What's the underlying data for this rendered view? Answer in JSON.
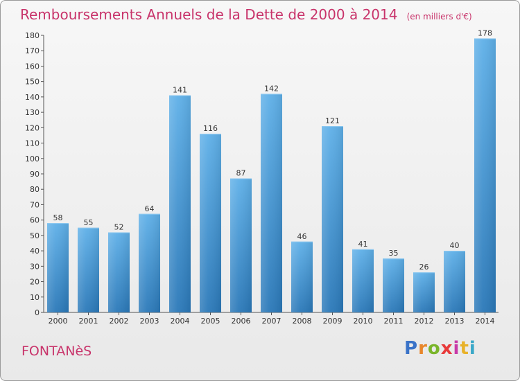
{
  "title": "Remboursements Annuels de la Dette de 2000 à 2014",
  "unit_note": "(en milliers d'€)",
  "commune": "FONTANèS",
  "logo": {
    "text": "Proxiti",
    "letters": [
      "P",
      "r",
      "o",
      "x",
      "i",
      "t",
      "i"
    ]
  },
  "colors": {
    "title": "#c8336a",
    "bar_top": "#5fb0e8",
    "bar_bottom": "#2a78b8"
  },
  "chart_data": {
    "type": "bar",
    "title": "Remboursements Annuels de la Dette de 2000 à 2014",
    "categories": [
      "2000",
      "2001",
      "2002",
      "2003",
      "2004",
      "2005",
      "2006",
      "2007",
      "2008",
      "2009",
      "2010",
      "2011",
      "2012",
      "2013",
      "2014"
    ],
    "values": [
      58,
      55,
      52,
      64,
      141,
      116,
      87,
      142,
      46,
      121,
      41,
      35,
      26,
      40,
      178
    ],
    "ylim": [
      0,
      180
    ],
    "yticks": [
      0,
      10,
      20,
      30,
      40,
      50,
      60,
      70,
      80,
      90,
      100,
      110,
      120,
      130,
      140,
      150,
      160,
      170,
      180
    ],
    "grid": false,
    "legend": "none"
  }
}
